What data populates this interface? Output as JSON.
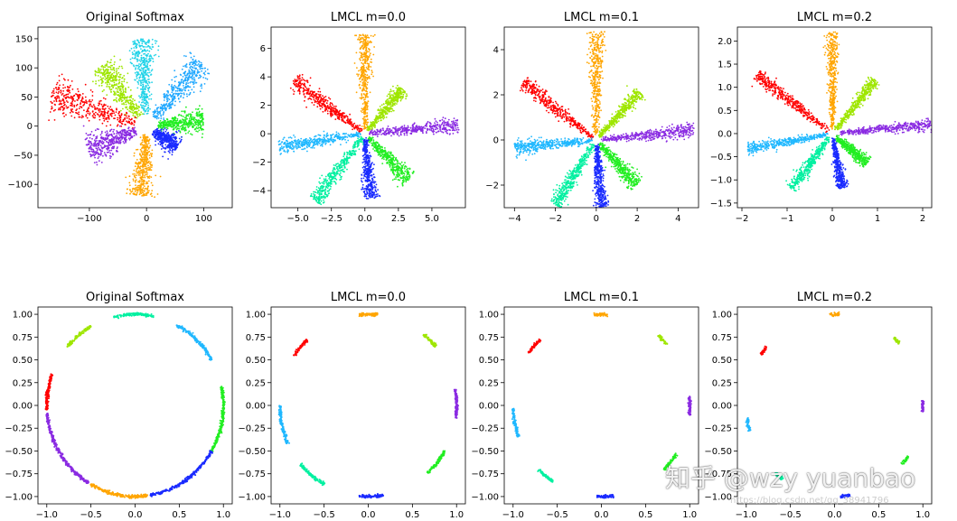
{
  "chart_data": [
    {
      "type": "scatter",
      "title": "Original Softmax",
      "xlim": [
        -190,
        150
      ],
      "ylim": [
        -140,
        170
      ],
      "xticks": [
        -100,
        0,
        100
      ],
      "xticklabels": [
        "−100",
        "0",
        "100"
      ],
      "yticks": [
        -100,
        -50,
        0,
        50,
        100,
        150
      ],
      "yticklabels": [
        "−100",
        "−50",
        "0",
        "50",
        "100",
        "150"
      ],
      "clusters": [
        {
          "color": "#ff0000",
          "angle": 162,
          "r": [
            20,
            175
          ],
          "spread": 12
        },
        {
          "color": "#9ee600",
          "angle": 127,
          "r": [
            20,
            130
          ],
          "spread": 10
        },
        {
          "color": "#22d3e8",
          "angle": 93,
          "r": [
            20,
            150
          ],
          "spread": 9
        },
        {
          "color": "#20a8ff",
          "angle": 48,
          "r": [
            20,
            145
          ],
          "spread": 10
        },
        {
          "color": "#22ee22",
          "angle": 4,
          "r": [
            20,
            100
          ],
          "spread": 9
        },
        {
          "color": "#1a2bff",
          "angle": -33,
          "r": [
            15,
            65
          ],
          "spread": 8
        },
        {
          "color": "#ffa500",
          "angle": -95,
          "r": [
            15,
            120
          ],
          "spread": 9
        },
        {
          "color": "#8a2be2",
          "angle": -158,
          "r": [
            20,
            110
          ],
          "spread": 11
        }
      ]
    },
    {
      "type": "scatter",
      "title": "LMCL m=0.0",
      "xlim": [
        -7,
        7.5
      ],
      "ylim": [
        -5.2,
        7.5
      ],
      "xticks": [
        -5,
        -2.5,
        0,
        2.5,
        5
      ],
      "xticklabels": [
        "−5.0",
        "−2.5",
        "0.0",
        "2.5",
        "5.0"
      ],
      "yticks": [
        -4,
        -2,
        0,
        2,
        4,
        6
      ],
      "yticklabels": [
        "−4",
        "−2",
        "0",
        "2",
        "4",
        "6"
      ],
      "clusters": [
        {
          "color": "#ff0000",
          "angle": 145,
          "r": [
            0.3,
            6.5
          ],
          "spread": 0.25
        },
        {
          "color": "#ffa500",
          "angle": 90,
          "r": [
            0.3,
            7.0
          ],
          "spread": 0.25
        },
        {
          "color": "#9ee600",
          "angle": 48,
          "r": [
            0.3,
            4.2
          ],
          "spread": 0.2
        },
        {
          "color": "#8a2be2",
          "angle": 5,
          "r": [
            0.3,
            7.0
          ],
          "spread": 0.22
        },
        {
          "color": "#22ee22",
          "angle": -45,
          "r": [
            0.3,
            4.6
          ],
          "spread": 0.25
        },
        {
          "color": "#1a2bff",
          "angle": -85,
          "r": [
            0.3,
            4.6
          ],
          "spread": 0.22
        },
        {
          "color": "#00f0a0",
          "angle": -128,
          "r": [
            0.3,
            6.0
          ],
          "spread": 0.25
        },
        {
          "color": "#20b8ff",
          "angle": -172,
          "r": [
            0.3,
            6.5
          ],
          "spread": 0.22
        }
      ]
    },
    {
      "type": "scatter",
      "title": "LMCL m=0.1",
      "xlim": [
        -4.5,
        5.0
      ],
      "ylim": [
        -3.0,
        5.0
      ],
      "xticks": [
        -4,
        -2,
        0,
        2,
        4
      ],
      "xticklabels": [
        "−4",
        "−2",
        "0",
        "2",
        "4"
      ],
      "yticks": [
        -2,
        0,
        2,
        4
      ],
      "yticklabels": [
        "−2",
        "0",
        "2",
        "4"
      ],
      "clusters": [
        {
          "color": "#ff0000",
          "angle": 145,
          "r": [
            0.2,
            4.4
          ],
          "spread": 0.15
        },
        {
          "color": "#ffa500",
          "angle": 90,
          "r": [
            0.2,
            4.8
          ],
          "spread": 0.15
        },
        {
          "color": "#9ee600",
          "angle": 45,
          "r": [
            0.2,
            3.0
          ],
          "spread": 0.12
        },
        {
          "color": "#8a2be2",
          "angle": 5,
          "r": [
            0.2,
            4.8
          ],
          "spread": 0.13
        },
        {
          "color": "#22ee22",
          "angle": -45,
          "r": [
            0.2,
            2.8
          ],
          "spread": 0.15
        },
        {
          "color": "#1a2bff",
          "angle": -85,
          "r": [
            0.2,
            3.0
          ],
          "spread": 0.13
        },
        {
          "color": "#00f0a0",
          "angle": -125,
          "r": [
            0.2,
            3.5
          ],
          "spread": 0.15
        },
        {
          "color": "#20b8ff",
          "angle": -175,
          "r": [
            0.2,
            4.0
          ],
          "spread": 0.13
        }
      ]
    },
    {
      "type": "scatter",
      "title": "LMCL m=0.2",
      "xlim": [
        -2.1,
        2.2
      ],
      "ylim": [
        -1.6,
        2.3
      ],
      "xticks": [
        -2,
        -1,
        0,
        1,
        2
      ],
      "xticklabels": [
        "−2",
        "−1",
        "0",
        "1",
        "2"
      ],
      "yticks": [
        -1.5,
        -1.0,
        -0.5,
        0.0,
        0.5,
        1.0,
        1.5,
        2.0
      ],
      "yticklabels": [
        "−1.5",
        "−1.0",
        "−0.5",
        "0.0",
        "0.5",
        "1.0",
        "1.5",
        "2.0"
      ],
      "clusters": [
        {
          "color": "#ff0000",
          "angle": 143,
          "r": [
            0.1,
            2.1
          ],
          "spread": 0.06
        },
        {
          "color": "#ffa500",
          "angle": 90,
          "r": [
            0.1,
            2.2
          ],
          "spread": 0.06
        },
        {
          "color": "#9ee600",
          "angle": 50,
          "r": [
            0.1,
            1.5
          ],
          "spread": 0.05
        },
        {
          "color": "#8a2be2",
          "angle": 5,
          "r": [
            0.1,
            2.2
          ],
          "spread": 0.05
        },
        {
          "color": "#22ee22",
          "angle": -40,
          "r": [
            0.1,
            1.0
          ],
          "spread": 0.06
        },
        {
          "color": "#1a2bff",
          "angle": -80,
          "r": [
            0.1,
            1.2
          ],
          "spread": 0.05
        },
        {
          "color": "#00f0a0",
          "angle": -127,
          "r": [
            0.1,
            1.5
          ],
          "spread": 0.06
        },
        {
          "color": "#20b8ff",
          "angle": -170,
          "r": [
            0.1,
            1.9
          ],
          "spread": 0.05
        }
      ]
    },
    {
      "type": "scatter",
      "title": "Original Softmax",
      "xlim": [
        -1.1,
        1.1
      ],
      "ylim": [
        -1.08,
        1.08
      ],
      "xticks": [
        -1.0,
        -0.5,
        0.0,
        0.5,
        1.0
      ],
      "xticklabels": [
        "−1.0",
        "−0.5",
        "0.0",
        "0.5",
        "1.0"
      ],
      "yticks": [
        -1.0,
        -0.75,
        -0.5,
        -0.25,
        0.0,
        0.25,
        0.5,
        0.75,
        1.0
      ],
      "yticklabels": [
        "−1.00",
        "−0.75",
        "−0.50",
        "−0.25",
        "0.00",
        "0.25",
        "0.50",
        "0.75",
        "1.00"
      ],
      "arcs": [
        {
          "color": "#ff0000",
          "from": 160,
          "to": 183
        },
        {
          "color": "#9ee600",
          "from": 120,
          "to": 140
        },
        {
          "color": "#00f0a0",
          "from": 78,
          "to": 104
        },
        {
          "color": "#20b8ff",
          "from": 30,
          "to": 62
        },
        {
          "color": "#22ee22",
          "from": -30,
          "to": 12
        },
        {
          "color": "#1a2bff",
          "from": -80,
          "to": -30
        },
        {
          "color": "#ffa500",
          "from": -120,
          "to": -82
        },
        {
          "color": "#8a2be2",
          "from": -175,
          "to": -122
        }
      ]
    },
    {
      "type": "scatter",
      "title": "LMCL m=0.0",
      "xlim": [
        -1.1,
        1.1
      ],
      "ylim": [
        -1.08,
        1.08
      ],
      "xticks": [
        -1.0,
        -0.5,
        0.0,
        0.5,
        1.0
      ],
      "xticklabels": [
        "−1.0",
        "−0.5",
        "0.0",
        "0.5",
        "1.0"
      ],
      "yticks": [
        -1.0,
        -0.75,
        -0.5,
        -0.25,
        0.0,
        0.25,
        0.5,
        0.75,
        1.0
      ],
      "yticklabels": [
        "−1.00",
        "−0.75",
        "−0.50",
        "−0.25",
        "0.00",
        "0.25",
        "0.50",
        "0.75",
        "1.00"
      ],
      "arcs": [
        {
          "color": "#ff0000",
          "from": 134,
          "to": 147
        },
        {
          "color": "#ffa500",
          "from": 84,
          "to": 96
        },
        {
          "color": "#9ee600",
          "from": 40,
          "to": 52
        },
        {
          "color": "#8a2be2",
          "from": -8,
          "to": 10
        },
        {
          "color": "#22ee22",
          "from": -48,
          "to": -30
        },
        {
          "color": "#1a2bff",
          "from": -96,
          "to": -80
        },
        {
          "color": "#00f0a0",
          "from": -140,
          "to": -120
        },
        {
          "color": "#20b8ff",
          "from": -180,
          "to": -155
        }
      ]
    },
    {
      "type": "scatter",
      "title": "LMCL m=0.1",
      "xlim": [
        -1.1,
        1.1
      ],
      "ylim": [
        -1.08,
        1.08
      ],
      "xticks": [
        -1.0,
        -0.5,
        0.0,
        0.5,
        1.0
      ],
      "xticklabels": [
        "−1.0",
        "−0.5",
        "0.0",
        "0.5",
        "1.0"
      ],
      "yticks": [
        -1.0,
        -0.75,
        -0.5,
        -0.25,
        0.0,
        0.25,
        0.5,
        0.75,
        1.0
      ],
      "yticklabels": [
        "−1.00",
        "−0.75",
        "−0.50",
        "−0.25",
        "0.00",
        "0.25",
        "0.50",
        "0.75",
        "1.00"
      ],
      "arcs": [
        {
          "color": "#ff0000",
          "from": 134,
          "to": 145
        },
        {
          "color": "#ffa500",
          "from": 86,
          "to": 95
        },
        {
          "color": "#9ee600",
          "from": 42,
          "to": 50
        },
        {
          "color": "#8a2be2",
          "from": -6,
          "to": 6
        },
        {
          "color": "#22ee22",
          "from": -45,
          "to": -32
        },
        {
          "color": "#1a2bff",
          "from": -93,
          "to": -82
        },
        {
          "color": "#00f0a0",
          "from": -135,
          "to": -123
        },
        {
          "color": "#20b8ff",
          "from": -178,
          "to": -160
        }
      ]
    },
    {
      "type": "scatter",
      "title": "LMCL m=0.2",
      "xlim": [
        -1.1,
        1.1
      ],
      "ylim": [
        -1.08,
        1.08
      ],
      "xticks": [
        -1.0,
        -0.5,
        0.0,
        0.5,
        1.0
      ],
      "xticklabels": [
        "−1.0",
        "−0.5",
        "0.0",
        "0.5",
        "1.0"
      ],
      "yticks": [
        -1.0,
        -0.75,
        -0.5,
        -0.25,
        0.0,
        0.25,
        0.5,
        0.75,
        1.0
      ],
      "yticklabels": [
        "−1.00",
        "−0.75",
        "−0.50",
        "−0.25",
        "0.00",
        "0.25",
        "0.50",
        "0.75",
        "1.00"
      ],
      "arcs": [
        {
          "color": "#ff0000",
          "from": 140,
          "to": 146
        },
        {
          "color": "#ffa500",
          "from": 87,
          "to": 93
        },
        {
          "color": "#9ee600",
          "from": 43,
          "to": 48
        },
        {
          "color": "#8a2be2",
          "from": -4,
          "to": 3
        },
        {
          "color": "#22ee22",
          "from": -40,
          "to": -34
        },
        {
          "color": "#1a2bff",
          "from": -86,
          "to": -80
        },
        {
          "color": "#00f0a0",
          "from": -132,
          "to": -126
        },
        {
          "color": "#20b8ff",
          "from": -172,
          "to": -164
        }
      ]
    }
  ],
  "watermark": {
    "text": "知乎 @wzy yuanbao",
    "url": "https://blog.csdn.net/qq_38941796"
  }
}
